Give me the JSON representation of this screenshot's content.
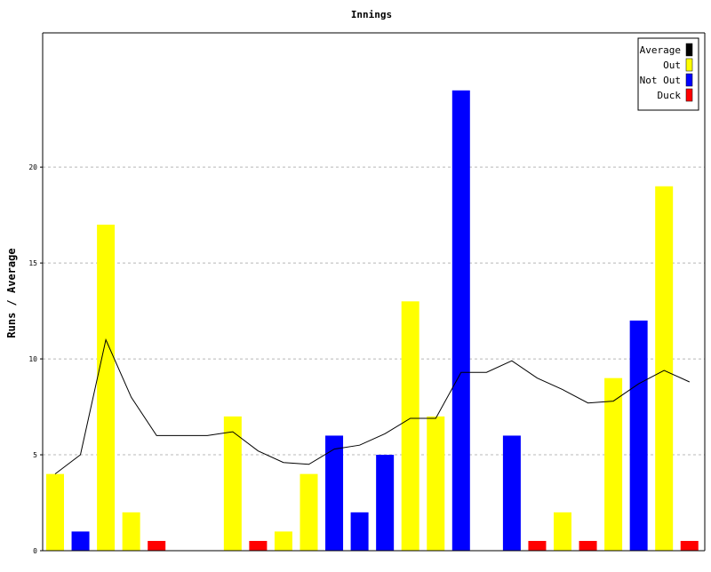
{
  "chart_data": {
    "type": "bar",
    "title": "Innings",
    "xlabel": "",
    "ylabel": "Runs / Average",
    "ylim": [
      0,
      27
    ],
    "yticks": [
      0,
      5,
      10,
      15,
      20
    ],
    "grid": true,
    "legend_position": "top-right",
    "legend": [
      {
        "label": "Average",
        "color": "#000000"
      },
      {
        "label": "Out",
        "color": "#ffff00"
      },
      {
        "label": "Not Out",
        "color": "#0000ff"
      },
      {
        "label": "Duck",
        "color": "#ff0000"
      }
    ],
    "innings": [
      {
        "runs": 4,
        "status": "Out"
      },
      {
        "runs": 1,
        "status": "Not Out"
      },
      {
        "runs": 17,
        "status": "Out"
      },
      {
        "runs": 2,
        "status": "Out"
      },
      {
        "runs": 0,
        "status": "Duck"
      },
      {
        "runs": null,
        "status": "None"
      },
      {
        "runs": null,
        "status": "None"
      },
      {
        "runs": 7,
        "status": "Out"
      },
      {
        "runs": 0,
        "status": "Duck"
      },
      {
        "runs": 1,
        "status": "Out"
      },
      {
        "runs": 4,
        "status": "Out"
      },
      {
        "runs": 6,
        "status": "Not Out"
      },
      {
        "runs": 2,
        "status": "Not Out"
      },
      {
        "runs": 5,
        "status": "Not Out"
      },
      {
        "runs": 13,
        "status": "Out"
      },
      {
        "runs": 7,
        "status": "Out"
      },
      {
        "runs": 24,
        "status": "Not Out"
      },
      {
        "runs": null,
        "status": "None"
      },
      {
        "runs": 6,
        "status": "Not Out"
      },
      {
        "runs": 0,
        "status": "Duck"
      },
      {
        "runs": 2,
        "status": "Out"
      },
      {
        "runs": 0,
        "status": "Duck"
      },
      {
        "runs": 9,
        "status": "Out"
      },
      {
        "runs": 12,
        "status": "Not Out"
      },
      {
        "runs": 19,
        "status": "Out"
      },
      {
        "runs": 0,
        "status": "Duck"
      }
    ],
    "average_series": {
      "name": "Average",
      "values": [
        4,
        5,
        11,
        8,
        6,
        6,
        6,
        6.2,
        5.2,
        4.6,
        4.5,
        5.3,
        5.5,
        6.1,
        6.9,
        6.9,
        9.3,
        9.3,
        9.9,
        9.0,
        8.4,
        7.7,
        7.8,
        8.7,
        9.4,
        8.8
      ]
    },
    "colors": {
      "Out": "#ffff00",
      "Not Out": "#0000ff",
      "Duck": "#ff0000",
      "Average": "#000000"
    }
  }
}
